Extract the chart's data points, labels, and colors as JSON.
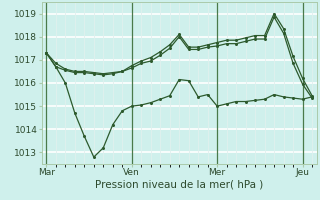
{
  "bg_color": "#cff0ec",
  "grid_color_h": "#ffffff",
  "grid_color_v": "#e0f0ee",
  "line_color": "#2d5a2d",
  "vline_color": "#4a7a4a",
  "xlabel": "Pression niveau de la mer( hPa )",
  "ylim": [
    1012.5,
    1019.5
  ],
  "yticks": [
    1013,
    1014,
    1015,
    1016,
    1017,
    1018,
    1019
  ],
  "xtick_labels": [
    "Mar",
    "Ven",
    "Mer",
    "Jeu"
  ],
  "xtick_positions": [
    0,
    9,
    18,
    27
  ],
  "vline_positions": [
    0,
    9,
    18,
    27
  ],
  "n_points": 29,
  "series": {
    "upper": [
      1017.3,
      1016.85,
      1016.6,
      1016.5,
      1016.5,
      1016.45,
      1016.4,
      1016.45,
      1016.5,
      1016.75,
      1016.95,
      1017.1,
      1017.35,
      1017.65,
      1018.1,
      1017.55,
      1017.55,
      1017.65,
      1017.75,
      1017.85,
      1017.85,
      1017.95,
      1018.05,
      1018.05,
      1019.0,
      1018.35,
      1017.15,
      1016.2,
      1015.45
    ],
    "middle": [
      1017.3,
      1016.7,
      1016.55,
      1016.45,
      1016.45,
      1016.4,
      1016.35,
      1016.4,
      1016.5,
      1016.65,
      1016.85,
      1016.95,
      1017.2,
      1017.5,
      1018.0,
      1017.45,
      1017.45,
      1017.55,
      1017.6,
      1017.7,
      1017.7,
      1017.8,
      1017.9,
      1017.9,
      1018.85,
      1018.15,
      1016.85,
      1015.95,
      1015.35
    ],
    "lower": [
      1017.3,
      1016.7,
      1016.0,
      1014.7,
      1013.7,
      1012.8,
      1013.2,
      1014.2,
      1014.8,
      1015.0,
      1015.05,
      1015.15,
      1015.3,
      1015.45,
      1016.15,
      1016.1,
      1015.4,
      1015.5,
      1015.0,
      1015.1,
      1015.2,
      1015.2,
      1015.25,
      1015.3,
      1015.5,
      1015.4,
      1015.35,
      1015.3,
      1015.4
    ]
  }
}
